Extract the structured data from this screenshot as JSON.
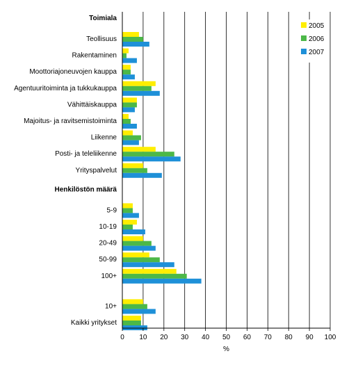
{
  "chart_data": {
    "type": "bar",
    "orientation": "horizontal",
    "xlabel": "%",
    "xlim": [
      0,
      100
    ],
    "x_ticks": [
      "0",
      "10",
      "20",
      "30",
      "40",
      "50",
      "60",
      "70",
      "80",
      "90",
      "100"
    ],
    "grid": "vertical",
    "legend_placement": "top-right",
    "series": [
      {
        "name": "2005",
        "color": "#ffee00"
      },
      {
        "name": "2006",
        "color": "#4cb848"
      },
      {
        "name": "2007",
        "color": "#1e90d8"
      }
    ],
    "groups": [
      {
        "header": "Toimiala",
        "categories": [
          {
            "label": "Teollisuus",
            "values": [
              8,
              10,
              13
            ]
          },
          {
            "label": "Rakentaminen",
            "values": [
              3,
              2,
              7
            ]
          },
          {
            "label": "Moottoriajoneuvojen kauppa",
            "values": [
              4,
              4,
              6
            ]
          },
          {
            "label": "Agentuuritoiminta ja tukkukauppa",
            "values": [
              16,
              14,
              18
            ]
          },
          {
            "label": "Vähittäiskauppa",
            "values": [
              7,
              7,
              6
            ]
          },
          {
            "label": "Majoitus- ja ravitsemistoiminta",
            "values": [
              3,
              4,
              7
            ]
          },
          {
            "label": "Liikenne",
            "values": [
              5,
              9,
              8
            ]
          },
          {
            "label": "Posti- ja teleliikenne",
            "values": [
              16,
              25,
              28
            ]
          },
          {
            "label": "Yrityspalvelut",
            "values": [
              10,
              12,
              19
            ]
          }
        ]
      },
      {
        "header": "Henkilöstön määrä",
        "categories": [
          {
            "label": "5-9",
            "values": [
              5,
              5,
              8
            ]
          },
          {
            "label": "10-19",
            "values": [
              7,
              5,
              11
            ]
          },
          {
            "label": "20-49",
            "values": [
              10,
              14,
              16
            ]
          },
          {
            "label": "50-99",
            "values": [
              13,
              18,
              25
            ]
          },
          {
            "label": "100+",
            "values": [
              26,
              31,
              38
            ]
          }
        ]
      },
      {
        "header": "",
        "categories": [
          {
            "label": "10+",
            "values": [
              10,
              12,
              16
            ]
          },
          {
            "label": "Kaikki yritykset",
            "values": [
              9,
              9,
              12
            ]
          }
        ]
      }
    ]
  }
}
